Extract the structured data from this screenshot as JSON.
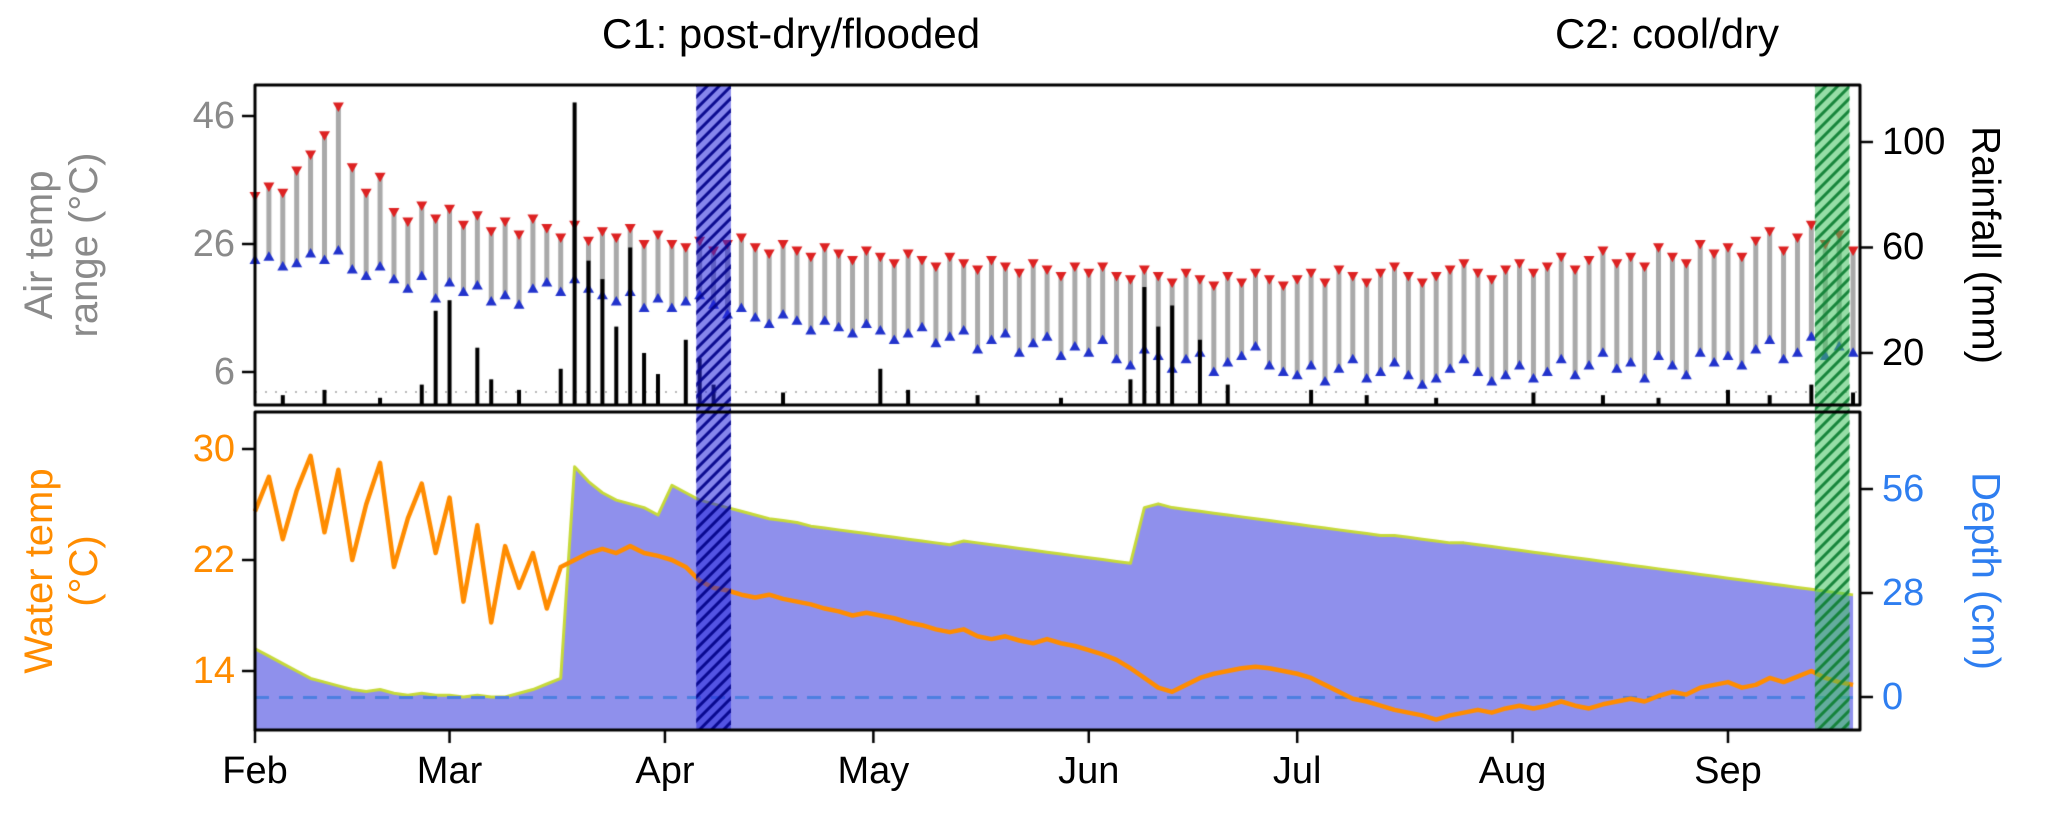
{
  "titles": {
    "c1": "C1: post-dry/flooded",
    "c2": "C2: cool/dry"
  },
  "axes": {
    "top_left": {
      "label_line1": "Air  temp",
      "label_line2": "range (°C)",
      "ticks": [
        46,
        26,
        6
      ],
      "color": "#8a8a8a"
    },
    "top_right": {
      "label": "Rainfall (mm)",
      "ticks": [
        100,
        60,
        20
      ],
      "color": "#000000"
    },
    "bottom_left": {
      "label_line1": "Water temp",
      "label_line2": "(°C)",
      "ticks": [
        30,
        22,
        14
      ],
      "color": "#FF8C00"
    },
    "bottom_right": {
      "label": "Depth (cm)",
      "ticks": [
        56,
        28,
        0
      ],
      "color": "#2E7EF0"
    },
    "x": {
      "months": [
        "Feb",
        "Mar",
        "Apr",
        "May",
        "Jun",
        "Jul",
        "Aug",
        "Sep"
      ],
      "month_days": [
        0,
        28,
        59,
        89,
        120,
        150,
        181,
        212
      ]
    }
  },
  "chart_data": {
    "type": "multi-panel-timeseries",
    "x_unit": "days since Feb 1",
    "x_max_day": 231,
    "x_days": [
      0,
      2,
      4,
      6,
      8,
      10,
      12,
      14,
      16,
      18,
      20,
      22,
      24,
      26,
      28,
      30,
      32,
      34,
      36,
      38,
      40,
      42,
      44,
      46,
      48,
      50,
      52,
      54,
      56,
      58,
      60,
      62,
      64,
      66,
      68,
      70,
      72,
      74,
      76,
      78,
      80,
      82,
      84,
      86,
      88,
      90,
      92,
      94,
      96,
      98,
      100,
      102,
      104,
      106,
      108,
      110,
      112,
      114,
      116,
      118,
      120,
      122,
      124,
      126,
      128,
      130,
      132,
      134,
      136,
      138,
      140,
      142,
      144,
      146,
      148,
      150,
      152,
      154,
      156,
      158,
      160,
      162,
      164,
      166,
      168,
      170,
      172,
      174,
      176,
      178,
      180,
      182,
      184,
      186,
      188,
      190,
      192,
      194,
      196,
      198,
      200,
      202,
      204,
      206,
      208,
      210,
      212,
      214,
      216,
      218,
      220,
      222,
      224,
      226,
      228,
      230
    ],
    "series": [
      {
        "name": "air_temp_max",
        "panel": "top",
        "unit": "degC",
        "marker": "red-triangle-down",
        "values": [
          33.5,
          35,
          34,
          37.5,
          40,
          43,
          47.5,
          38,
          34,
          36.5,
          31,
          29.5,
          32,
          30,
          31.5,
          29,
          30.5,
          28,
          29.5,
          27.5,
          30,
          28.5,
          27,
          29,
          26.5,
          28,
          27,
          28.5,
          26,
          27.5,
          26,
          25.5,
          26.5,
          25,
          26,
          27,
          25.5,
          24.5,
          26,
          25,
          24,
          25.5,
          24.5,
          23.5,
          25,
          24,
          23,
          24.5,
          23.5,
          22.5,
          24,
          23,
          22,
          23.5,
          22.5,
          21.5,
          23,
          22,
          21,
          22.5,
          21.5,
          22.5,
          21,
          20.5,
          22,
          21,
          20,
          21.5,
          20.5,
          19.5,
          21,
          20,
          21.5,
          20.5,
          19.5,
          20.5,
          21.5,
          20,
          22,
          21,
          20,
          21.5,
          22.5,
          21,
          20,
          21,
          22,
          23,
          21.5,
          20.5,
          22,
          23,
          21.5,
          22.5,
          24,
          22,
          23.5,
          25,
          23,
          24,
          22.5,
          25.5,
          24,
          23,
          26,
          24.5,
          25.5,
          24,
          26.5,
          28,
          25,
          27,
          29,
          26,
          27.5,
          25
        ]
      },
      {
        "name": "air_temp_min",
        "panel": "top",
        "unit": "degC",
        "marker": "blue-triangle-up",
        "values": [
          23.5,
          24,
          22.5,
          23,
          24.5,
          23.5,
          25,
          22,
          21,
          22.5,
          20.5,
          19,
          21,
          17.5,
          20,
          18.5,
          19.5,
          17,
          18,
          16.5,
          19,
          20,
          18.5,
          20.5,
          19,
          18,
          17,
          18.5,
          16,
          17.5,
          16,
          17,
          18,
          16.5,
          15,
          16,
          14.5,
          13.5,
          15,
          14,
          12.5,
          14,
          13,
          12,
          13.5,
          12.5,
          11,
          12,
          13,
          10.5,
          11.5,
          12.5,
          9.5,
          11,
          12,
          9,
          10.5,
          11.5,
          8.5,
          10,
          9,
          11,
          8,
          7,
          9.5,
          8.5,
          6.5,
          8,
          9,
          6,
          7.5,
          8.5,
          10,
          7,
          6,
          5.5,
          7,
          4.5,
          6.5,
          8,
          5,
          6,
          7.5,
          5.5,
          4,
          5,
          6.5,
          8,
          6,
          4.5,
          5.5,
          7,
          5,
          6,
          8,
          5.5,
          7,
          9,
          6.5,
          7.5,
          5,
          8.5,
          7,
          5.5,
          9,
          7.5,
          8.5,
          7,
          9.5,
          11,
          8,
          9,
          11.5,
          8.5,
          10,
          9
        ]
      },
      {
        "name": "rainfall_mm",
        "panel": "top",
        "unit": "mm",
        "marker": "black-bar",
        "values": [
          0,
          0,
          4,
          0,
          0,
          6,
          0,
          0,
          0,
          3,
          0,
          0,
          8,
          36,
          40,
          0,
          22,
          10,
          0,
          6,
          0,
          0,
          14,
          115,
          55,
          48,
          30,
          60,
          20,
          12,
          0,
          25,
          18,
          8,
          0,
          0,
          0,
          0,
          5,
          0,
          0,
          0,
          0,
          0,
          0,
          14,
          0,
          6,
          0,
          0,
          0,
          0,
          4,
          0,
          0,
          0,
          0,
          0,
          3,
          0,
          0,
          0,
          0,
          10,
          45,
          30,
          38,
          0,
          25,
          0,
          8,
          0,
          0,
          0,
          0,
          0,
          6,
          0,
          0,
          0,
          4,
          0,
          0,
          0,
          0,
          3,
          0,
          0,
          0,
          0,
          0,
          0,
          5,
          0,
          0,
          0,
          0,
          4,
          0,
          0,
          0,
          3,
          0,
          0,
          0,
          0,
          6,
          0,
          0,
          4,
          0,
          0,
          8,
          0,
          0,
          5
        ]
      },
      {
        "name": "water_temp_c",
        "panel": "bottom",
        "unit": "degC",
        "marker": "orange-line",
        "values": [
          25.5,
          28,
          23.5,
          27,
          29.5,
          24,
          28.5,
          22,
          26,
          29,
          21.5,
          25,
          27.5,
          22.5,
          26.5,
          19,
          24.5,
          17.5,
          23,
          20,
          22.5,
          18.5,
          21.5,
          22,
          22.5,
          22.8,
          22.5,
          23,
          22.5,
          22.3,
          22,
          21.5,
          20.5,
          20,
          19.8,
          19.5,
          19.3,
          19.5,
          19.2,
          19,
          18.8,
          18.5,
          18.3,
          18,
          18.2,
          18,
          17.8,
          17.5,
          17.3,
          17,
          16.8,
          17,
          16.5,
          16.3,
          16.5,
          16.2,
          16,
          16.3,
          16,
          15.8,
          15.5,
          15.2,
          14.8,
          14.2,
          13.5,
          12.8,
          12.5,
          13,
          13.5,
          13.8,
          14,
          14.2,
          14.3,
          14.2,
          14,
          13.8,
          13.5,
          13,
          12.5,
          12,
          11.8,
          11.5,
          11.2,
          11,
          10.8,
          10.5,
          10.8,
          11,
          11.2,
          11,
          11.3,
          11.5,
          11.3,
          11.5,
          11.8,
          11.5,
          11.3,
          11.6,
          11.8,
          12,
          11.8,
          12.2,
          12.5,
          12.3,
          12.8,
          13,
          13.2,
          12.8,
          13,
          13.5,
          13.2,
          13.6,
          14,
          13.5,
          13.2,
          13
        ]
      },
      {
        "name": "depth_cm",
        "panel": "bottom",
        "unit": "cm",
        "marker": "filled-area",
        "values": [
          13,
          11,
          9,
          7,
          5,
          4,
          3,
          2,
          1.5,
          2,
          1,
          0.5,
          1,
          0.5,
          0.5,
          0,
          0.5,
          0,
          0,
          1,
          2,
          3.5,
          5,
          62,
          58,
          55,
          53,
          52,
          51,
          49,
          57,
          55,
          53,
          52,
          51,
          50,
          49,
          48,
          47.5,
          47,
          46,
          45.5,
          45,
          44.5,
          44,
          43.5,
          43,
          42.5,
          42,
          41.5,
          41,
          42,
          41.5,
          41,
          40.5,
          40,
          39.5,
          39,
          38.5,
          38,
          37.5,
          37,
          36.5,
          36,
          51,
          52,
          51,
          50.5,
          50,
          49.5,
          49,
          48.5,
          48,
          47.5,
          47,
          46.5,
          46,
          45.5,
          45,
          44.5,
          44,
          43.5,
          43.5,
          43,
          42.5,
          42,
          41.5,
          41.5,
          41,
          40.5,
          40,
          39.5,
          39,
          38.5,
          38,
          37.5,
          37,
          36.5,
          36,
          35.5,
          35,
          34.5,
          34,
          33.5,
          33,
          32.5,
          32,
          31.5,
          31,
          30.5,
          30,
          29.5,
          29,
          28.5,
          28,
          27.5
        ]
      }
    ],
    "events": [
      {
        "name": "C1",
        "label": "C1: post-dry/flooded",
        "day_start": 63.5,
        "day_end": 68.5,
        "fill": "rgba(35,35,220,0.55)",
        "hatch": "rgba(5,5,140,0.95)"
      },
      {
        "name": "C2",
        "label": "C2: cool/dry",
        "day_start": 224.5,
        "day_end": 229.5,
        "fill": "rgba(65,195,95,0.55)",
        "hatch": "rgba(18,130,55,0.95)"
      }
    ],
    "reference_line": {
      "name": "zero-depth-dashed-line",
      "depth_cm": 0,
      "color": "#4D7FE0"
    },
    "style": {
      "temp_bar": "#A9A9A9",
      "tmax_marker": "#DD2222",
      "tmin_marker": "#2233CC",
      "rain_bar": "#000000",
      "water_line": "#FF8C00",
      "depth_fill": "#8687EA",
      "depth_edge": "#C6D93B",
      "zero_line": "#4D7FE0",
      "panel_border": "#000000",
      "rain_trace_dots": "#B9B9B9"
    }
  }
}
